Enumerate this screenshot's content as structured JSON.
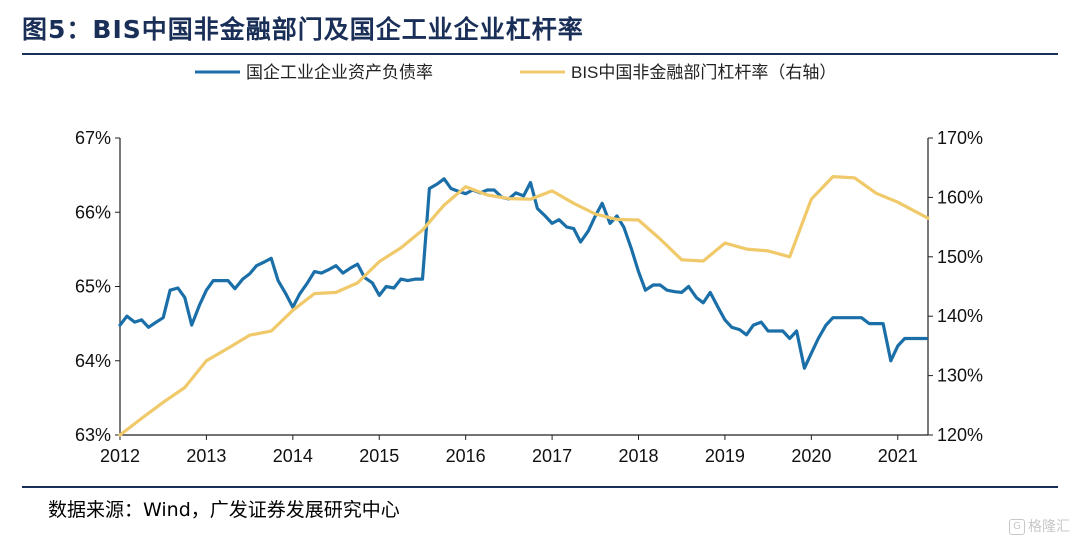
{
  "page": {
    "title": "图5：BIS中国非金融部门及国企工业企业杠杆率",
    "source": "数据来源：Wind，广发证券发展研究中心",
    "watermark": "格隆汇"
  },
  "colors": {
    "left_series": "#1b6fa8",
    "right_series": "#f0c96a",
    "axis": "#222222"
  },
  "chart_data": {
    "type": "line",
    "title": "图5：BIS中国非金融部门及国企工业企业杠杆率",
    "x_ticks": [
      "2012",
      "2013",
      "2014",
      "2015",
      "2016",
      "2017",
      "2018",
      "2019",
      "2020",
      "2021"
    ],
    "xlim": [
      2012.0,
      2021.35
    ],
    "y_left": {
      "ticks": [
        "63%",
        "64%",
        "65%",
        "66%",
        "67%"
      ],
      "lim": [
        63,
        67
      ],
      "unit": "%"
    },
    "y_right": {
      "ticks": [
        "120%",
        "130%",
        "140%",
        "150%",
        "160%",
        "170%"
      ],
      "lim": [
        120,
        170
      ],
      "unit": "%"
    },
    "legend_position": "top",
    "series": [
      {
        "name": "国企工业企业资产负债率",
        "axis": "left",
        "color": "#1b6fa8",
        "x": [
          2012.0,
          2012.08,
          2012.17,
          2012.25,
          2012.33,
          2012.42,
          2012.5,
          2012.58,
          2012.67,
          2012.75,
          2012.83,
          2012.92,
          2013.0,
          2013.08,
          2013.17,
          2013.25,
          2013.33,
          2013.42,
          2013.5,
          2013.58,
          2013.67,
          2013.75,
          2013.83,
          2013.92,
          2014.0,
          2014.08,
          2014.17,
          2014.25,
          2014.33,
          2014.42,
          2014.5,
          2014.58,
          2014.67,
          2014.75,
          2014.83,
          2014.92,
          2015.0,
          2015.08,
          2015.17,
          2015.25,
          2015.33,
          2015.42,
          2015.5,
          2015.58,
          2015.67,
          2015.75,
          2015.83,
          2015.92,
          2016.0,
          2016.08,
          2016.17,
          2016.25,
          2016.33,
          2016.42,
          2016.5,
          2016.58,
          2016.67,
          2016.75,
          2016.83,
          2016.92,
          2017.0,
          2017.08,
          2017.17,
          2017.25,
          2017.33,
          2017.42,
          2017.5,
          2017.58,
          2017.67,
          2017.75,
          2017.83,
          2017.92,
          2018.0,
          2018.08,
          2018.17,
          2018.25,
          2018.33,
          2018.42,
          2018.5,
          2018.58,
          2018.67,
          2018.75,
          2018.83,
          2018.92,
          2019.0,
          2019.08,
          2019.17,
          2019.25,
          2019.33,
          2019.42,
          2019.5,
          2019.58,
          2019.67,
          2019.75,
          2019.83,
          2019.92,
          2020.0,
          2020.08,
          2020.17,
          2020.25,
          2020.33,
          2020.42,
          2020.5,
          2020.58,
          2020.67,
          2020.75,
          2020.83,
          2020.92,
          2021.0,
          2021.08,
          2021.17,
          2021.25,
          2021.33
        ],
        "values": [
          64.48,
          64.6,
          64.52,
          64.55,
          64.45,
          64.52,
          64.58,
          64.95,
          64.98,
          64.85,
          64.48,
          64.75,
          64.95,
          65.08,
          65.08,
          65.08,
          64.97,
          65.1,
          65.17,
          65.28,
          65.33,
          65.38,
          65.08,
          64.9,
          64.72,
          64.9,
          65.05,
          65.2,
          65.18,
          65.23,
          65.28,
          65.18,
          65.25,
          65.3,
          65.12,
          65.05,
          64.88,
          65.0,
          64.98,
          65.1,
          65.08,
          65.1,
          65.1,
          66.32,
          66.38,
          66.45,
          66.32,
          66.28,
          66.25,
          66.3,
          66.26,
          66.3,
          66.3,
          66.2,
          66.18,
          66.26,
          66.22,
          66.4,
          66.05,
          65.95,
          65.85,
          65.9,
          65.8,
          65.78,
          65.6,
          65.75,
          65.95,
          66.12,
          65.85,
          65.95,
          65.8,
          65.5,
          65.2,
          64.95,
          65.02,
          65.02,
          64.95,
          64.93,
          64.92,
          65.0,
          64.85,
          64.78,
          64.92,
          64.72,
          64.55,
          64.45,
          64.42,
          64.35,
          64.48,
          64.52,
          64.4,
          64.4,
          64.4,
          64.3,
          64.4,
          63.9,
          64.1,
          64.3,
          64.48,
          64.58,
          64.58,
          64.58,
          64.58,
          64.58,
          64.5,
          64.5,
          64.5,
          64.0,
          64.2,
          64.3,
          64.3,
          64.3,
          64.3
        ]
      },
      {
        "name": "BIS中国非金融部门杠杆率（右轴）",
        "axis": "right",
        "color": "#f0c96a",
        "x": [
          2012.0,
          2012.25,
          2012.5,
          2012.75,
          2013.0,
          2013.25,
          2013.5,
          2013.75,
          2014.0,
          2014.25,
          2014.5,
          2014.75,
          2015.0,
          2015.25,
          2015.5,
          2015.75,
          2016.0,
          2016.25,
          2016.5,
          2016.75,
          2017.0,
          2017.25,
          2017.5,
          2017.75,
          2018.0,
          2018.25,
          2018.5,
          2018.75,
          2019.0,
          2019.25,
          2019.5,
          2019.75,
          2020.0,
          2020.25,
          2020.5,
          2020.75,
          2021.0,
          2021.35
        ],
        "values": [
          120.0,
          122.8,
          125.5,
          128.0,
          132.5,
          134.6,
          136.8,
          137.5,
          141.0,
          143.8,
          144.0,
          145.6,
          149.2,
          151.5,
          154.5,
          158.7,
          161.8,
          160.4,
          159.8,
          159.7,
          161.1,
          159.0,
          157.2,
          156.3,
          156.2,
          153.0,
          149.5,
          149.3,
          152.3,
          151.3,
          151.0,
          150.0,
          159.7,
          163.5,
          163.3,
          160.7,
          159.2,
          156.5
        ]
      }
    ]
  }
}
